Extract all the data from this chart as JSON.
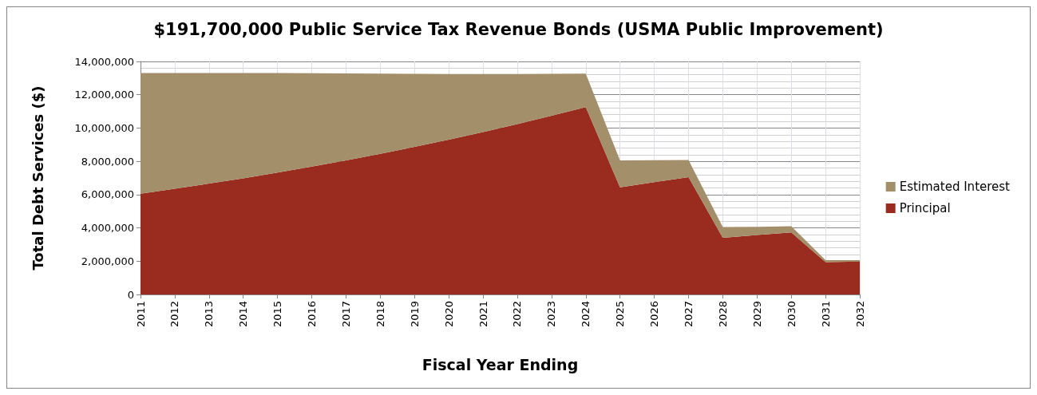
{
  "chart_data": {
    "type": "area",
    "title": "$191,700,000 Public Service Tax Revenue Bonds (USMA Public Improvement)",
    "xlabel": "Fiscal Year Ending",
    "ylabel": "Total Debt Services ($)",
    "categories": [
      "2011",
      "2012",
      "2013",
      "2014",
      "2015",
      "2016",
      "2017",
      "2018",
      "2019",
      "2020",
      "2021",
      "2022",
      "2023",
      "2024",
      "2025",
      "2026",
      "2027",
      "2028",
      "2029",
      "2030",
      "2031",
      "2032"
    ],
    "stacked": true,
    "series": [
      {
        "name": "Principal",
        "color": "#9a2c1f",
        "values": [
          6050000,
          6350000,
          6660000,
          6980000,
          7320000,
          7680000,
          8060000,
          8450000,
          8870000,
          9300000,
          9760000,
          10240000,
          10740000,
          11250000,
          6440000,
          6750000,
          7050000,
          3410000,
          3570000,
          3730000,
          1940000,
          1980000
        ]
      },
      {
        "name": "Estimated Interest",
        "color": "#a48f6b",
        "values": [
          7250000,
          6950000,
          6650000,
          6330000,
          5980000,
          5610000,
          5220000,
          4820000,
          4390000,
          3950000,
          3490000,
          3010000,
          2520000,
          2020000,
          1610000,
          1320000,
          1030000,
          640000,
          490000,
          370000,
          120000,
          80000
        ]
      }
    ],
    "ylim": [
      0,
      14000000
    ],
    "yticks": [
      {
        "value": 0,
        "label": "0"
      },
      {
        "value": 2000000,
        "label": "2,000,000"
      },
      {
        "value": 4000000,
        "label": "4,000,000"
      },
      {
        "value": 6000000,
        "label": "6,000,000"
      },
      {
        "value": 8000000,
        "label": "8,000,000"
      },
      {
        "value": 10000000,
        "label": "10,000,000"
      },
      {
        "value": 12000000,
        "label": "12,000,000"
      },
      {
        "value": 14000000,
        "label": "14,000,000"
      }
    ],
    "grid": true,
    "legend": "right"
  }
}
